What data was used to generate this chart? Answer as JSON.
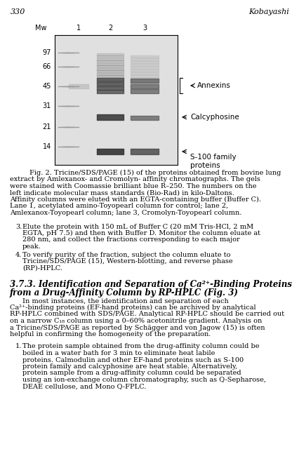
{
  "page_number": "330",
  "author": "Kobayashi",
  "background_color": "#ffffff",
  "gel_image_color": "#d0d0d0",
  "fig_caption": "Fig. 2. Tricine/SDS/PAGE (15) of the proteins obtained from bovine lung extract by Amlexanox- and Cromolyn- affinity chromatographs. The gels were stained with Coomassie brilliant blue R–250. The numbers on the left indicate molecular mass standards (Bio-Rad) in kilo-Daltons. Affinity columns were eluted with an EGTA-containing buffer (Buffer C). Lane 1, acetylated amino-Toyopearl column for control; lane 2, Amlexanox-Toyopearl column; lane 3, Cromolyn-Toyopearl column.",
  "mw_labels": [
    "97",
    "66",
    "45",
    "31",
    "21",
    "14"
  ],
  "lane_labels": [
    "Mw",
    "1",
    "2",
    "3"
  ],
  "annotations": [
    "Annexins",
    "Calcyphosine",
    "S-100 family\nproteins"
  ],
  "body_text": [
    {
      "type": "list_item",
      "number": "3.",
      "text": "Elute the protein with 150 mL of Buffer C (20 mΜ Tris-HCl, 2 mΜ EGTA, pH 7.5) and then with Buffer D. Monitor the column eluate at 280 nm, and collect the fractions corresponding to each major peak."
    },
    {
      "type": "list_item",
      "number": "4.",
      "text": "To verify purity of the fraction, subject the column eluate to Tricine/SDS/PAGE (15), Western-blotting, and reverse phase (RP)-HPLC."
    },
    {
      "type": "section_heading",
      "text": "3.7.3. Identification and Separation of Ca²⁺-Binding Proteins\nfrom a Drug-Affinity Column by RP-HPLC (Fig. 3)"
    },
    {
      "type": "paragraph",
      "text": "In most instances, the identification and separation of each Ca²⁺-binding proteins (EF-hand proteins) can be archived by analytical RP-HPLC combined with SDS/PAGE. Analytical RP-HPLC should be carried out on a narrow C₁₈ column using a 0–60% acetonitrile gradient. Analysis on a Tricine/SDS/PAGE as reported by Schägger and von Jagow (15) is often helpful in confirming the homogeneity of the preparation."
    },
    {
      "type": "list_item",
      "number": "1.",
      "text": "The protein sample obtained from the drug-affinity column could be boiled in a water bath for 3 min to eliminate heat labile proteins. Calmodulin and other EF-hand proteins such as S-100 protein family and calcyphosine are heat stable. Alternatively, protein sample from a drug-affinity column could be separated using an ion-exchange column chromatography, such as Q-Sepharose, DEAE cellulose, and Mono Q-FPLC."
    }
  ]
}
